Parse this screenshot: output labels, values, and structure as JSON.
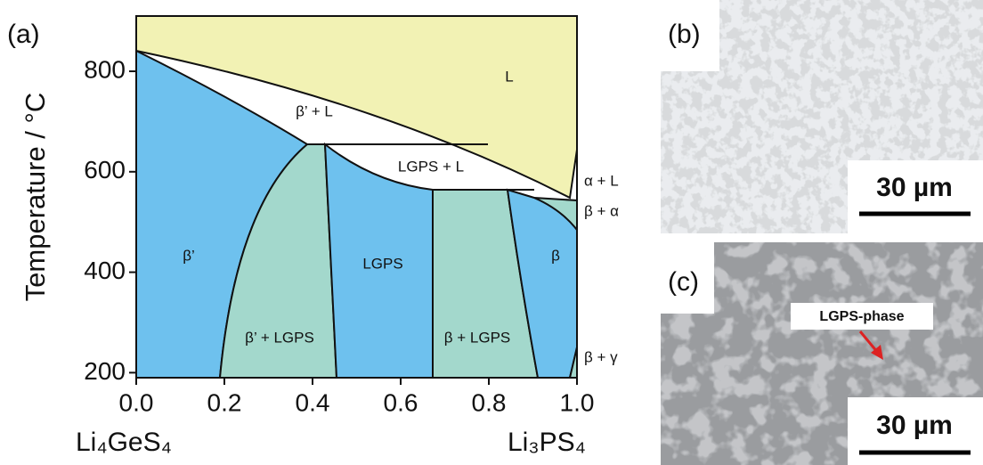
{
  "chart_data": {
    "type": "phase-diagram",
    "panel_label": "(a)",
    "ylabel": "Temperature / °C",
    "x_end_labels": [
      "Li₄GeS₄",
      "Li₃PS₄"
    ],
    "xlim": [
      0,
      1
    ],
    "ylim": [
      190,
      910
    ],
    "xticks": [
      {
        "value": 0,
        "label": "0.0"
      },
      {
        "value": 0.2,
        "label": "0.2"
      },
      {
        "value": 0.4,
        "label": "0.4"
      },
      {
        "value": 0.6,
        "label": "0.6"
      },
      {
        "value": 0.8,
        "label": "0.8"
      },
      {
        "value": 1,
        "label": "1.0"
      }
    ],
    "yticks": [
      200,
      400,
      600,
      800
    ],
    "region_labels": [
      "L",
      "β’ + L",
      "LGPS + L",
      "α + L",
      "β + α",
      "β’",
      "LGPS",
      "β",
      "β’ + LGPS",
      "β + LGPS",
      "β + γ"
    ]
  },
  "micrographs": [
    {
      "label": "(b)",
      "scale_bar": "30 µm"
    },
    {
      "label": "(c)",
      "scale_bar": "30 µm",
      "annotation": "LGPS-phase"
    }
  ]
}
